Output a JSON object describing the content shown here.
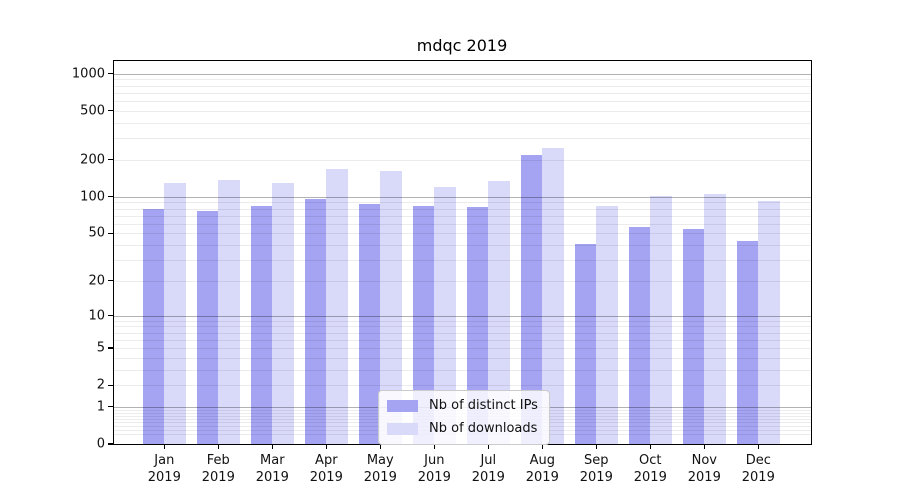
{
  "title": "mdqc 2019",
  "chart_data": {
    "type": "bar",
    "title": "mdqc 2019",
    "categories": [
      "Jan",
      "Feb",
      "Mar",
      "Apr",
      "May",
      "Jun",
      "Jul",
      "Aug",
      "Sep",
      "Oct",
      "Nov",
      "Dec"
    ],
    "year_label": "2019",
    "series": [
      {
        "name": "Nb of distinct IPs",
        "color": "#a4a4f2",
        "values": [
          79,
          76,
          84,
          95,
          88,
          84,
          82,
          220,
          41,
          56,
          54,
          43
        ]
      },
      {
        "name": "Nb of downloads",
        "color": "#d9d9f9",
        "values": [
          129,
          136,
          129,
          167,
          161,
          120,
          134,
          250,
          84,
          101,
          105,
          92
        ]
      }
    ],
    "xlabel": "",
    "ylabel": "",
    "yscale": "symlog-like: position proportional to log10(value+1)",
    "yticks": [
      0,
      1,
      2,
      5,
      10,
      20,
      50,
      100,
      200,
      500,
      1000
    ],
    "ylim": [
      0,
      1270
    ],
    "grid": "horizontal: major at 1,10,100,1000; faint minors at 2-9 per decade",
    "legend_position": "lower center inside plot"
  }
}
